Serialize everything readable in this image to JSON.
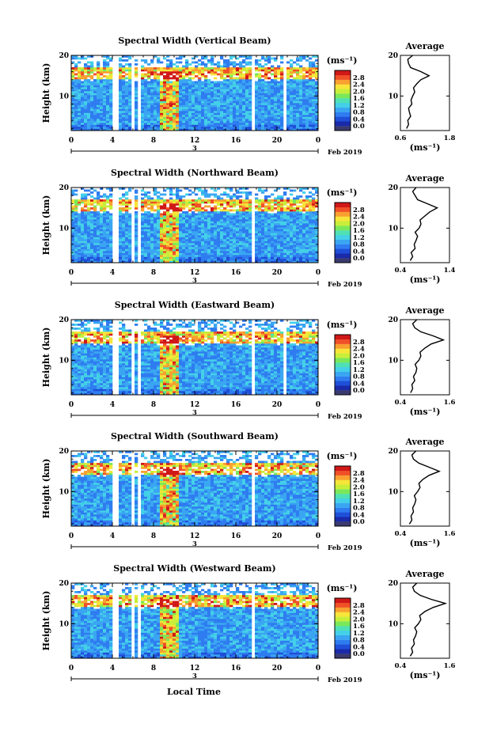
{
  "figure": {
    "date_label": "Feb 2019",
    "x_axis_label": "Local Time",
    "day_label": "3"
  },
  "colorbar": {
    "unit": "(ms⁻¹)",
    "ticks": [
      "0.0",
      "0.4",
      "0.8",
      "1.2",
      "1.6",
      "2.0",
      "2.4",
      "2.8"
    ],
    "colors": [
      "#3a3a6e",
      "#1a2aa8",
      "#1f4fd8",
      "#2f7cf0",
      "#3aa6f2",
      "#44d0e8",
      "#4fe0b4",
      "#7ae85a",
      "#c8ee3a",
      "#f7e53a",
      "#f8a030",
      "#f05028",
      "#d01818"
    ]
  },
  "chart_data": [
    {
      "type": "heatmap",
      "title": "Spectral Width (Vertical Beam)",
      "ylabel": "Height (km)",
      "xlabel": "",
      "x_ticks": [
        "0",
        "4",
        "8",
        "12",
        "16",
        "20",
        "0"
      ],
      "y_ticks": [
        "10",
        "20"
      ],
      "xlim": [
        0,
        24
      ],
      "ylim": [
        1.5,
        20
      ],
      "value_unit": "ms⁻¹",
      "value_range": [
        0.0,
        3.0
      ],
      "data_gaps_hours": [
        [
          4.1,
          4.6
        ],
        [
          5.7,
          6.0
        ],
        [
          6.5,
          6.9
        ],
        [
          17.6,
          17.9
        ],
        [
          20.7,
          21.0
        ]
      ],
      "average_profile": {
        "title": "Average",
        "xlabel": "(ms⁻¹)",
        "x_ticks": [
          "0.6",
          "1.8"
        ],
        "xlim": [
          0.6,
          1.8
        ],
        "y_ticks": [
          "10",
          "20"
        ],
        "ylim": [
          1.5,
          20
        ],
        "height_km": [
          2,
          3,
          4,
          5,
          6,
          7,
          8,
          9,
          10,
          11,
          12,
          13,
          14,
          15,
          16,
          17,
          18,
          19,
          20
        ],
        "width_ms": [
          0.75,
          0.8,
          0.78,
          0.85,
          0.82,
          0.8,
          0.88,
          0.86,
          0.9,
          0.95,
          0.92,
          1.0,
          1.1,
          1.3,
          1.1,
          0.85,
          0.8,
          0.78,
          0.9
        ]
      }
    },
    {
      "type": "heatmap",
      "title": "Spectral Width (Northward Beam)",
      "ylabel": "Height (km)",
      "xlabel": "",
      "x_ticks": [
        "0",
        "4",
        "8",
        "12",
        "16",
        "20",
        "0"
      ],
      "y_ticks": [
        "10",
        "20"
      ],
      "xlim": [
        0,
        24
      ],
      "ylim": [
        1.5,
        20
      ],
      "value_unit": "ms⁻¹",
      "value_range": [
        0.0,
        3.0
      ],
      "data_gaps_hours": [
        [
          4.1,
          4.6
        ],
        [
          5.7,
          6.0
        ],
        [
          6.5,
          6.9
        ],
        [
          17.6,
          17.9
        ]
      ],
      "average_profile": {
        "title": "Average",
        "xlabel": "(ms⁻¹)",
        "x_ticks": [
          "0.4",
          "1.4"
        ],
        "xlim": [
          0.4,
          1.4
        ],
        "y_ticks": [
          "10",
          "20"
        ],
        "ylim": [
          1.5,
          20
        ],
        "height_km": [
          2,
          3,
          4,
          5,
          6,
          7,
          8,
          9,
          10,
          11,
          12,
          13,
          14,
          15,
          16,
          17,
          18,
          19,
          20
        ],
        "width_ms": [
          0.6,
          0.65,
          0.62,
          0.7,
          0.68,
          0.72,
          0.75,
          0.7,
          0.78,
          0.82,
          0.8,
          0.9,
          1.0,
          1.15,
          0.95,
          0.75,
          0.7,
          0.65,
          0.72
        ]
      }
    },
    {
      "type": "heatmap",
      "title": "Spectral Width (Eastward Beam)",
      "ylabel": "Height (km)",
      "xlabel": "",
      "x_ticks": [
        "0",
        "4",
        "8",
        "12",
        "16",
        "20",
        "0"
      ],
      "y_ticks": [
        "10",
        "20"
      ],
      "xlim": [
        0,
        24
      ],
      "ylim": [
        1.5,
        20
      ],
      "value_unit": "ms⁻¹",
      "value_range": [
        0.0,
        3.0
      ],
      "data_gaps_hours": [
        [
          4.1,
          4.6
        ],
        [
          5.7,
          6.0
        ],
        [
          6.5,
          6.9
        ],
        [
          17.6,
          17.9
        ],
        [
          20.7,
          21.0
        ]
      ],
      "average_profile": {
        "title": "Average",
        "xlabel": "(ms⁻¹)",
        "x_ticks": [
          "0.4",
          "1.6"
        ],
        "xlim": [
          0.4,
          1.6
        ],
        "y_ticks": [
          "10",
          "20"
        ],
        "ylim": [
          1.5,
          20
        ],
        "height_km": [
          2,
          3,
          4,
          5,
          6,
          7,
          8,
          9,
          10,
          11,
          12,
          13,
          14,
          15,
          16,
          17,
          18,
          19,
          20
        ],
        "width_ms": [
          0.65,
          0.7,
          0.68,
          0.75,
          0.72,
          0.78,
          0.8,
          0.76,
          0.85,
          0.9,
          0.88,
          1.0,
          1.15,
          1.45,
          1.2,
          0.9,
          0.75,
          0.7,
          0.8
        ]
      }
    },
    {
      "type": "heatmap",
      "title": "Spectral Width (Southward Beam)",
      "ylabel": "Height (km)",
      "xlabel": "",
      "x_ticks": [
        "0",
        "4",
        "8",
        "12",
        "16",
        "20",
        "0"
      ],
      "y_ticks": [
        "10",
        "20"
      ],
      "xlim": [
        0,
        24
      ],
      "ylim": [
        1.5,
        20
      ],
      "value_unit": "ms⁻¹",
      "value_range": [
        0.0,
        3.0
      ],
      "data_gaps_hours": [
        [
          4.1,
          4.6
        ],
        [
          5.7,
          6.0
        ],
        [
          6.5,
          6.9
        ],
        [
          17.6,
          17.9
        ]
      ],
      "average_profile": {
        "title": "Average",
        "xlabel": "(ms⁻¹)",
        "x_ticks": [
          "0.4",
          "1.6"
        ],
        "xlim": [
          0.4,
          1.6
        ],
        "y_ticks": [
          "10",
          "20"
        ],
        "ylim": [
          1.5,
          20
        ],
        "height_km": [
          2,
          3,
          4,
          5,
          6,
          7,
          8,
          9,
          10,
          11,
          12,
          13,
          14,
          15,
          16,
          17,
          18,
          19,
          20
        ],
        "width_ms": [
          0.62,
          0.68,
          0.66,
          0.72,
          0.7,
          0.75,
          0.78,
          0.74,
          0.82,
          0.88,
          0.85,
          0.95,
          1.1,
          1.35,
          1.1,
          0.85,
          0.72,
          0.68,
          0.78
        ]
      }
    },
    {
      "type": "heatmap",
      "title": "Spectral Width (Westward Beam)",
      "ylabel": "Height (km)",
      "xlabel": "Local Time",
      "x_ticks": [
        "0",
        "4",
        "8",
        "12",
        "16",
        "20",
        "0"
      ],
      "y_ticks": [
        "10",
        "20"
      ],
      "xlim": [
        0,
        24
      ],
      "ylim": [
        1.5,
        20
      ],
      "value_unit": "ms⁻¹",
      "value_range": [
        0.0,
        3.0
      ],
      "data_gaps_hours": [
        [
          4.1,
          4.6
        ],
        [
          5.7,
          6.0
        ],
        [
          6.5,
          6.9
        ],
        [
          17.6,
          17.9
        ]
      ],
      "average_profile": {
        "title": "Average",
        "xlabel": "(ms⁻¹)",
        "x_ticks": [
          "0.4",
          "1.6"
        ],
        "xlim": [
          0.4,
          1.6
        ],
        "y_ticks": [
          "10",
          "20"
        ],
        "ylim": [
          1.5,
          20
        ],
        "height_km": [
          2,
          3,
          4,
          5,
          6,
          7,
          8,
          9,
          10,
          11,
          12,
          13,
          14,
          15,
          16,
          17,
          18,
          19,
          20
        ],
        "width_ms": [
          0.64,
          0.7,
          0.67,
          0.74,
          0.72,
          0.77,
          0.8,
          0.75,
          0.84,
          0.9,
          0.87,
          1.0,
          1.2,
          1.5,
          1.15,
          0.88,
          0.74,
          0.7,
          0.8
        ]
      }
    }
  ]
}
